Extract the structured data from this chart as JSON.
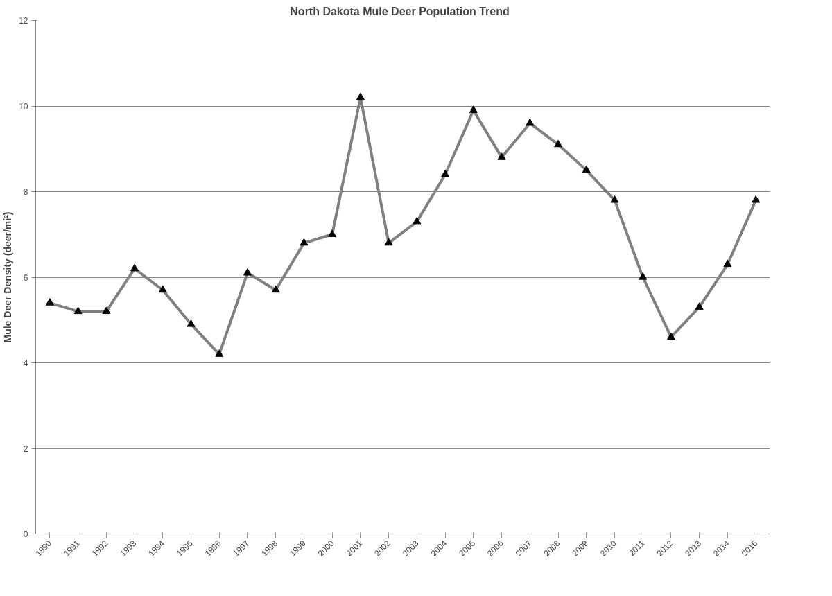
{
  "chart_data": {
    "type": "line",
    "title": "North Dakota  Mule Deer Population  Trend",
    "ylabel": "Mule Deer Density (deer/mi²)",
    "categories": [
      "1990",
      "1991",
      "1992",
      "1993",
      "1994",
      "1995",
      "1996",
      "1997",
      "1998",
      "1999",
      "2000",
      "2001",
      "2002",
      "2003",
      "2004",
      "2005",
      "2006",
      "2007",
      "2008",
      "2009",
      "2010",
      "2011",
      "2012",
      "2013",
      "2014",
      "2015"
    ],
    "series": [
      {
        "color": "#808080",
        "values": [
          5.4,
          5.2,
          5.2,
          6.2,
          5.7,
          4.9,
          4.2,
          6.1,
          5.7,
          6.8,
          7.0,
          10.2,
          6.8,
          7.3,
          8.4,
          9.9,
          8.8,
          9.6,
          9.1,
          8.5,
          7.8,
          6.0,
          4.6,
          5.3,
          6.3,
          7.8
        ]
      }
    ],
    "ylim": [
      0,
      12
    ],
    "yticks": [
      0,
      2,
      4,
      6,
      8,
      10,
      12
    ],
    "grid": "y",
    "marker": "triangle",
    "line_style": "solid"
  }
}
